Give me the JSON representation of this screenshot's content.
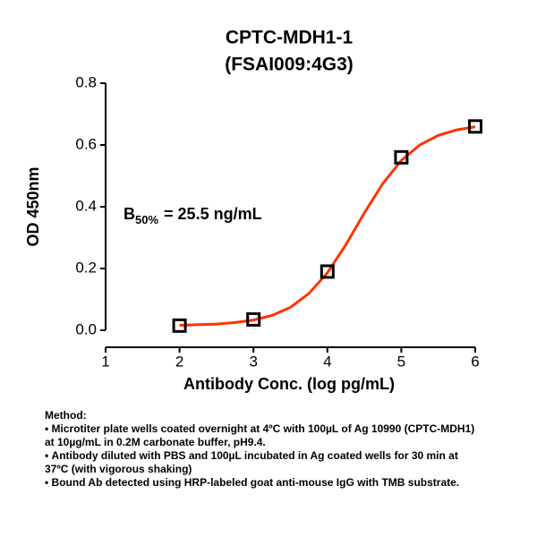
{
  "chart_data": {
    "type": "scatter",
    "title": "CPTC-MDH1-1",
    "subtitle": "(FSAI009:4G3)",
    "xlabel": "Antibody Conc. (log pg/mL)",
    "ylabel": "OD 450nm",
    "xlim": [
      1,
      6
    ],
    "xticks": [
      1,
      2,
      3,
      4,
      5,
      6
    ],
    "ylim": [
      0,
      0.8
    ],
    "yticks": [
      {
        "value": 0,
        "label": "0.0"
      },
      0.2,
      0.4,
      0.6,
      0.8
    ],
    "annotation": {
      "base": "B",
      "subscript": "50%",
      "text": "= 25.5 ng/mL"
    },
    "series": [
      {
        "style": "markers",
        "color": "#000000",
        "x": [
          2,
          3,
          4,
          5,
          6
        ],
        "values": [
          0.015,
          0.035,
          0.19,
          0.56,
          0.66
        ]
      },
      {
        "style": "line",
        "color": "#ff3300",
        "x": [
          2,
          2.25,
          2.5,
          2.75,
          3,
          3.25,
          3.5,
          3.75,
          4,
          4.25,
          4.5,
          4.75,
          5,
          5.25,
          5.5,
          5.75,
          6
        ],
        "values": [
          0.016,
          0.018,
          0.02,
          0.025,
          0.033,
          0.048,
          0.074,
          0.119,
          0.186,
          0.277,
          0.38,
          0.475,
          0.55,
          0.6,
          0.631,
          0.649,
          0.659
        ]
      }
    ]
  },
  "method": {
    "heading": "Method:",
    "items": [
      "Microtiter plate wells coated overnight at 4ºC  with 100µL of Ag 10990 (CPTC-MDH1) at 10µg/mL in 0.2M carbonate buffer, pH9.4.",
      "Antibody diluted with PBS and 100µL incubated in Ag coated wells for 30 min at 37ºC (with vigorous shaking)",
      "Bound Ab detected using HRP-labeled goat anti-mouse IgG with TMB substrate."
    ]
  }
}
